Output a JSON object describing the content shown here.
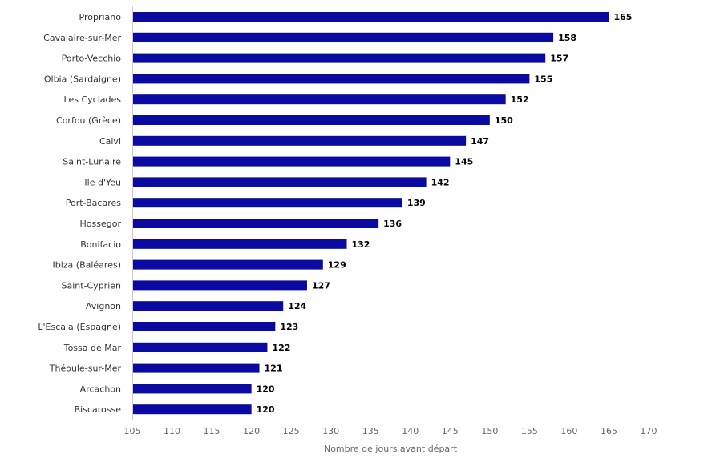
{
  "chart_data": {
    "type": "bar",
    "orientation": "horizontal",
    "categories": [
      "Propriano",
      "Cavalaire-sur-Mer",
      "Porto-Vecchio",
      "Olbia (Sardaigne)",
      "Les Cyclades",
      "Corfou (Grèce)",
      "Calvi",
      "Saint-Lunaire",
      "Ile d'Yeu",
      "Port-Bacares",
      "Hossegor",
      "Bonifacio",
      "Ibiza (Baléares)",
      "Saint-Cyprien",
      "Avignon",
      "L'Escala (Espagne)",
      "Tossa de Mar",
      "Théoule-sur-Mer",
      "Arcachon",
      "Biscarosse"
    ],
    "values": [
      165,
      158,
      157,
      155,
      152,
      150,
      147,
      145,
      142,
      139,
      136,
      132,
      129,
      127,
      124,
      123,
      122,
      121,
      120,
      120
    ],
    "xlabel": "Nombre de jours avant départ",
    "xlim": [
      105,
      170
    ],
    "xticks": [
      "105",
      "110",
      "115",
      "120",
      "125",
      "130",
      "135",
      "140",
      "145",
      "150",
      "155",
      "160",
      "165",
      "170"
    ],
    "bar_color": "#0a0aa0",
    "data_labels": true,
    "grid": false,
    "legend": "none"
  }
}
